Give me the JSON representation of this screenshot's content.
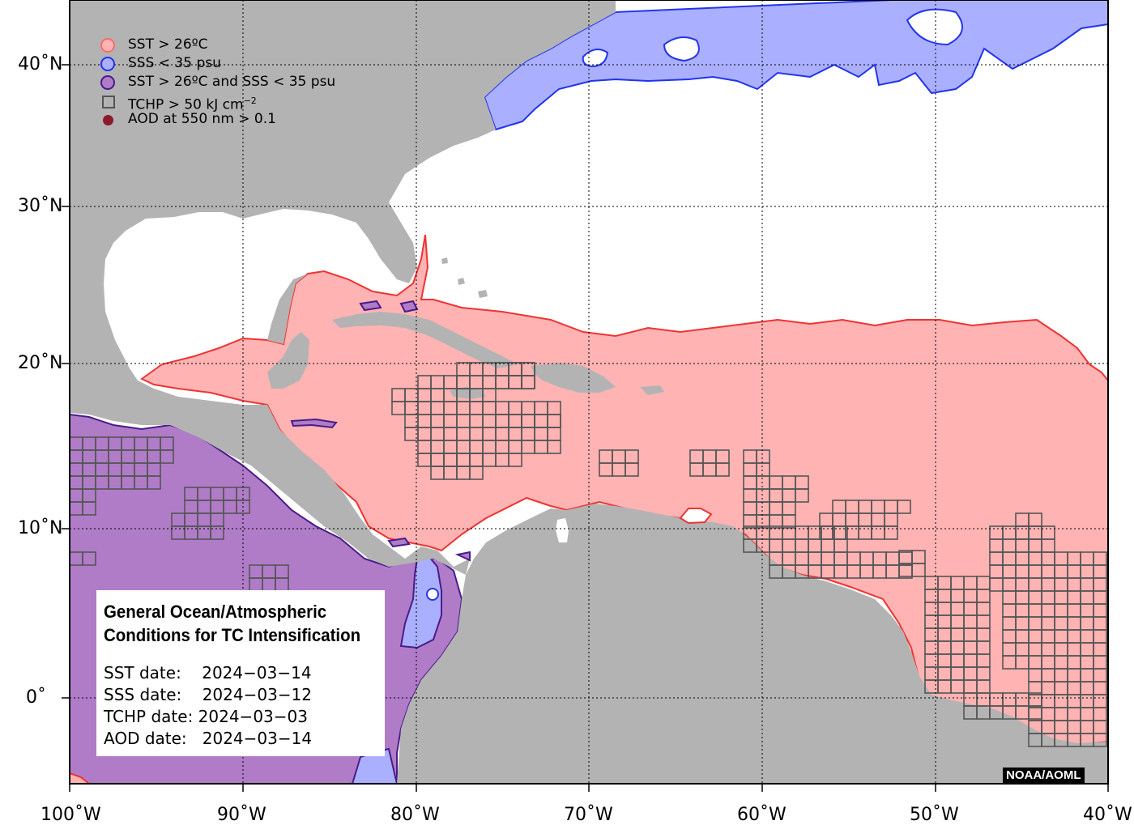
{
  "legend": [
    {
      "label": "SST > 26ºC",
      "color": "#ff6b6b",
      "fill": "#ffb3b3",
      "kind": "circle"
    },
    {
      "label": "SSS < 35 psu",
      "color": "#2233ee",
      "fill": "#aab0ff",
      "kind": "circle"
    },
    {
      "label": "SST > 26ºC and SSS < 35 psu",
      "color": "#4a1b8a",
      "fill": "#b07cc8",
      "kind": "circle"
    },
    {
      "label": "TCHP > 50 kJ cm",
      "sup": "−2",
      "color": "#555555",
      "kind": "square"
    },
    {
      "label": "AOD at 550 nm > 0.1",
      "color": "#8b1a2b",
      "kind": "dot"
    }
  ],
  "info": {
    "title_line1": "General Ocean/Atmospheric",
    "title_line2": "Conditions for TC Intensification",
    "sst": "SST date:    2024−03−14",
    "sss": "SSS date:    2024−03−12",
    "tchp": "TCHP date: 2024−03−03",
    "aod": "AOD date:   2024−03−14"
  },
  "credit": "NOAA/AOML",
  "axes": {
    "lon_labels": [
      "100˚W",
      "90˚W",
      "80˚W",
      "70˚W",
      "60˚W",
      "50˚W",
      "40˚W"
    ],
    "lat_labels": [
      "40˚N",
      "30˚N",
      "20˚N",
      "10˚N",
      "0˚"
    ],
    "lon_range": [
      -100,
      -40
    ],
    "lat_range": [
      -5,
      44
    ]
  },
  "colors": {
    "land": "#b3b3b3",
    "ocean": "#ffffff",
    "sst": "#ffb3b3",
    "sst_edge": "#ee3333",
    "sss": "#aab0ff",
    "sss_edge": "#2233ee",
    "both": "#b07cc8",
    "both_edge": "#4a1b8a",
    "tchp_grid": "#555555"
  }
}
